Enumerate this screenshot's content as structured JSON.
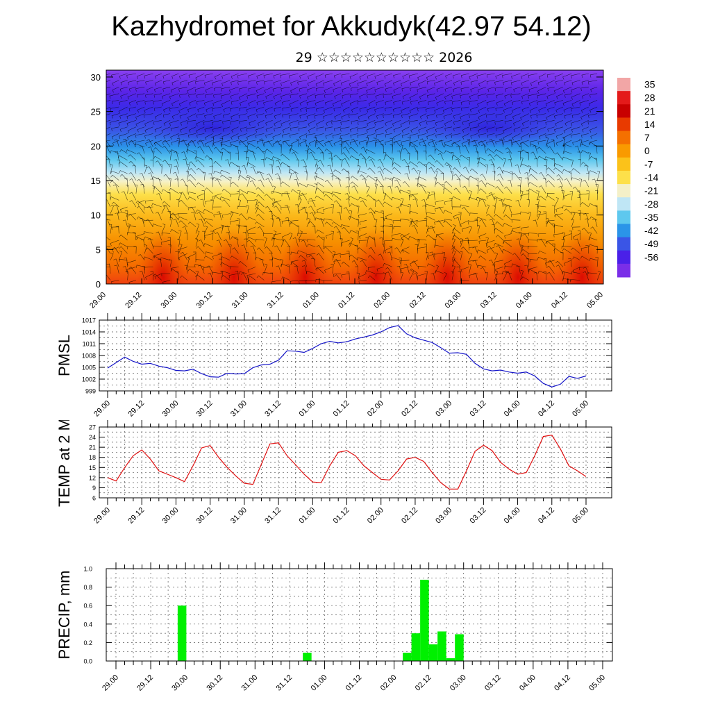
{
  "page": {
    "title": "Kazhydromet for Akkudyk(42.97 54.12)",
    "subtitle": "29 ☆☆☆☆☆☆☆☆☆☆ 2026"
  },
  "time_ticks": [
    "29.00",
    "29.12",
    "30.00",
    "30.12",
    "31.00",
    "31.12",
    "01.00",
    "01.12",
    "02.00",
    "02.12",
    "03.00",
    "03.12",
    "04.00",
    "04.12",
    "05.00"
  ],
  "chart_data": [
    {
      "type": "heatmap",
      "name": "cross-section",
      "ylim": [
        0,
        31
      ],
      "yticks": [
        0,
        5,
        10,
        15,
        20,
        25,
        30
      ],
      "colorbar": {
        "labels": [
          "35",
          "28",
          "21",
          "14",
          "7",
          "0",
          "-7",
          "-14",
          "-21",
          "-28",
          "-35",
          "-42",
          "-49",
          "-56"
        ],
        "colors": [
          "#f2a6a6",
          "#e41a1a",
          "#c80000",
          "#e83a00",
          "#f47000",
          "#f99a00",
          "#fbc21a",
          "#fde04a",
          "#f4f0c8",
          "#bfe6f5",
          "#5ec8ee",
          "#2b94e8",
          "#3a55e6",
          "#4a20e8",
          "#7a2ee8"
        ]
      }
    },
    {
      "type": "line",
      "name": "PMSL",
      "ylabel": "PMSL",
      "ylim": [
        999,
        1017
      ],
      "yticks": [
        999,
        1002,
        1005,
        1008,
        1011,
        1014,
        1017
      ],
      "color": "#1414c8",
      "values": [
        1004.8,
        1006.2,
        1007.6,
        1006.5,
        1005.8,
        1006.0,
        1005.3,
        1004.9,
        1004.2,
        1004.1,
        1004.5,
        1003.4,
        1002.6,
        1002.5,
        1003.5,
        1003.3,
        1003.4,
        1004.9,
        1005.6,
        1005.8,
        1006.8,
        1009.2,
        1009.1,
        1008.8,
        1009.8,
        1011.0,
        1011.6,
        1011.2,
        1011.5,
        1012.2,
        1012.7,
        1013.2,
        1014.0,
        1015.1,
        1015.6,
        1013.5,
        1012.5,
        1011.9,
        1011.3,
        1010.0,
        1008.6,
        1008.7,
        1008.3,
        1006.0,
        1004.6,
        1004.1,
        1004.3,
        1003.8,
        1003.5,
        1003.8,
        1002.8,
        1000.9,
        1000.0,
        1000.7,
        1002.7,
        1002.2,
        1002.8
      ]
    },
    {
      "type": "line",
      "name": "TEMP at 2 M",
      "ylabel": "TEMP at 2 M",
      "ylim": [
        6,
        27
      ],
      "yticks": [
        6,
        9,
        12,
        15,
        18,
        21,
        24,
        27
      ],
      "color": "#e01010",
      "values": [
        12,
        11,
        15,
        18.5,
        20.2,
        17.5,
        14,
        13,
        12,
        10.8,
        15.5,
        20.8,
        21.5,
        18,
        15,
        12.5,
        10.3,
        10,
        16,
        22,
        22.3,
        18.5,
        15.8,
        13,
        10.7,
        10.5,
        15.5,
        19.5,
        20,
        18.5,
        15.5,
        13.5,
        11.5,
        11.3,
        14,
        17.5,
        18,
        16.8,
        13.5,
        10.5,
        8.6,
        8.6,
        14,
        19.8,
        21.6,
        20,
        16.5,
        14.5,
        13,
        13.5,
        18.5,
        24.2,
        24.6,
        20.5,
        15.5,
        14,
        12.3
      ]
    },
    {
      "type": "bar",
      "name": "precip",
      "ylabel": "PRECIP, mm",
      "ylim": [
        0,
        1.0
      ],
      "yticks": [
        "0.0",
        "0.2",
        "0.4",
        "0.6",
        "0.8",
        "1.0"
      ],
      "color": "#00f000",
      "bars": [
        {
          "x": 7.6,
          "value": 0.6
        },
        {
          "x": 22.0,
          "value": 0.09
        },
        {
          "x": 33.5,
          "value": 0.09
        },
        {
          "x": 34.5,
          "value": 0.3
        },
        {
          "x": 35.5,
          "value": 0.88
        },
        {
          "x": 36.5,
          "value": 0.18
        },
        {
          "x": 37.5,
          "value": 0.32
        },
        {
          "x": 38.5,
          "value": 0.03
        },
        {
          "x": 39.5,
          "value": 0.29
        }
      ]
    }
  ]
}
